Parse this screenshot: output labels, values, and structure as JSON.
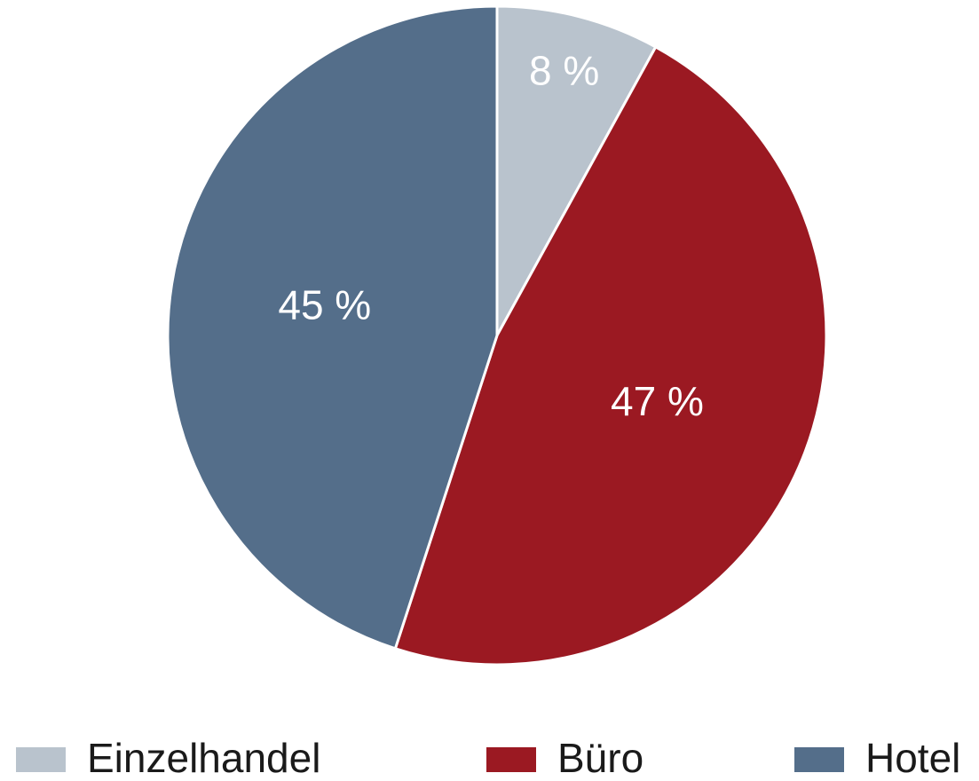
{
  "chart_data": {
    "type": "pie",
    "categories": [
      "Einzelhandel",
      "Büro",
      "Hotel"
    ],
    "values": [
      8,
      47,
      45
    ],
    "value_labels": [
      "8 %",
      "47 %",
      "45 %"
    ],
    "colors": [
      "#b9c3cd",
      "#9b1922",
      "#546e8a"
    ],
    "legend": "bottom"
  }
}
